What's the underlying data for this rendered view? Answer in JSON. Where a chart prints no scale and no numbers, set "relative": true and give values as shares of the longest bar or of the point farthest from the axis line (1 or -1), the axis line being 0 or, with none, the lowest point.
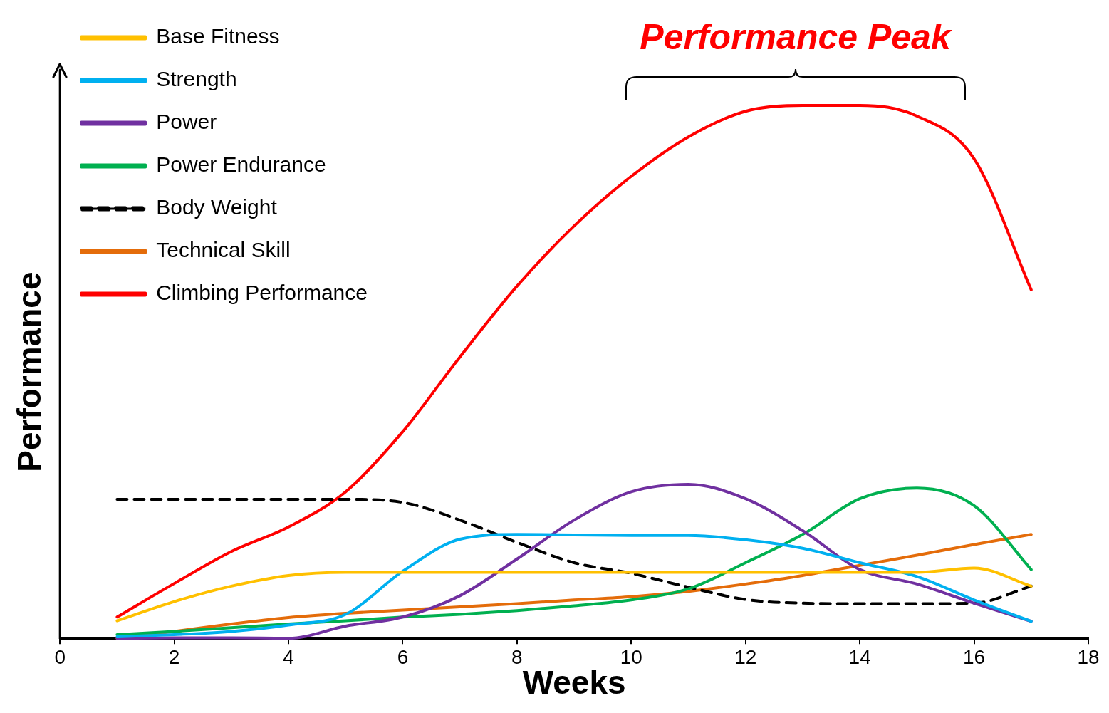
{
  "chart_data": {
    "type": "line",
    "relative": true,
    "xlabel": "Weeks",
    "ylabel": "Performance",
    "xlim": [
      0,
      18
    ],
    "xticks": [
      0,
      2,
      4,
      6,
      8,
      10,
      12,
      14,
      16,
      18
    ],
    "legend": "top left",
    "marker": "none",
    "annotations": [
      "Performance Peak"
    ],
    "series": [
      {
        "name": "Base Fitness",
        "color": "#ffc000",
        "x": [
          1,
          2,
          3,
          4,
          5,
          6,
          7,
          8,
          9,
          10,
          11,
          12,
          13,
          14,
          15,
          16,
          17
        ],
        "values": [
          0.033,
          0.069,
          0.098,
          0.118,
          0.124,
          0.124,
          0.124,
          0.124,
          0.124,
          0.124,
          0.124,
          0.124,
          0.124,
          0.124,
          0.124,
          0.132,
          0.098
        ]
      },
      {
        "name": "Strength",
        "color": "#00b0f0",
        "x": [
          1,
          2,
          3,
          4,
          5,
          6,
          7,
          8,
          9,
          10,
          11,
          12,
          13,
          14,
          15,
          16,
          17
        ],
        "values": [
          0.003,
          0.007,
          0.013,
          0.025,
          0.045,
          0.126,
          0.186,
          0.195,
          0.194,
          0.193,
          0.193,
          0.185,
          0.169,
          0.142,
          0.116,
          0.072,
          0.032
        ]
      },
      {
        "name": "Power",
        "color": "#7030a0",
        "x": [
          1,
          2,
          3,
          4,
          5,
          6,
          7,
          8,
          9,
          10,
          11,
          12,
          13,
          14,
          15,
          16,
          17
        ],
        "values": [
          0,
          0.001,
          0.001,
          0,
          0.023,
          0.04,
          0.08,
          0.149,
          0.222,
          0.275,
          0.289,
          0.262,
          0.202,
          0.129,
          0.102,
          0.066,
          0.032
        ]
      },
      {
        "name": "Power Endurance",
        "color": "#00b050",
        "x": [
          1,
          2,
          3,
          4,
          5,
          6,
          7,
          8,
          9,
          10,
          11,
          12,
          13,
          14,
          15,
          16,
          17
        ],
        "values": [
          0.007,
          0.013,
          0.02,
          0.027,
          0.033,
          0.04,
          0.045,
          0.052,
          0.061,
          0.072,
          0.093,
          0.142,
          0.195,
          0.262,
          0.282,
          0.249,
          0.129
        ]
      },
      {
        "name": "Body Weight",
        "color": "#000000",
        "line_style": "dashed",
        "x": [
          1,
          2,
          3,
          4,
          5,
          6,
          7,
          8,
          9,
          10,
          11,
          12,
          13,
          14,
          15,
          16,
          17
        ],
        "values": [
          0.261,
          0.261,
          0.261,
          0.261,
          0.261,
          0.255,
          0.222,
          0.18,
          0.142,
          0.122,
          0.096,
          0.073,
          0.066,
          0.065,
          0.065,
          0.066,
          0.098
        ]
      },
      {
        "name": "Technical Skill",
        "color": "#e46c0a",
        "x": [
          1,
          2,
          3,
          4,
          5,
          6,
          7,
          8,
          9,
          10,
          11,
          12,
          13,
          14,
          15,
          16,
          17
        ],
        "values": [
          0,
          0.013,
          0.027,
          0.039,
          0.047,
          0.053,
          0.059,
          0.065,
          0.072,
          0.078,
          0.088,
          0.102,
          0.118,
          0.137,
          0.156,
          0.176,
          0.195
        ]
      },
      {
        "name": "Climbing Performance",
        "color": "#ff0000",
        "x": [
          1,
          2,
          3,
          4,
          5,
          6,
          7,
          8,
          9,
          10,
          11,
          12,
          13,
          14,
          15,
          16,
          17
        ],
        "values": [
          0.04,
          0.103,
          0.163,
          0.209,
          0.275,
          0.388,
          0.528,
          0.661,
          0.774,
          0.867,
          0.941,
          0.989,
          1,
          1,
          0.98,
          0.9,
          0.654
        ]
      }
    ]
  }
}
